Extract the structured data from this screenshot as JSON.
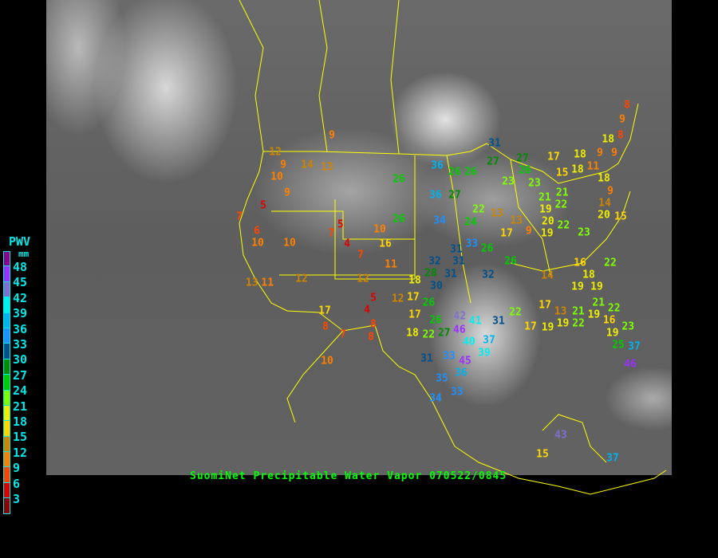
{
  "title": "SuomiNet Precipitable Water Vapor 070522/0845",
  "legend": {
    "title": "PWV",
    "unit": "mm",
    "ticks": [
      "48",
      "45",
      "42",
      "39",
      "36",
      "33",
      "30",
      "27",
      "24",
      "21",
      "18",
      "15",
      "12",
      "9",
      "6",
      "3"
    ],
    "colors": [
      "#8b008b",
      "#9b30ff",
      "#8070d0",
      "#00eeee",
      "#00b2ee",
      "#1e90ff",
      "#00508c",
      "#008b00",
      "#00cd00",
      "#7fff00",
      "#eeee00",
      "#ffd700",
      "#cd8500",
      "#ff8000",
      "#ff4500",
      "#dd0000",
      "#8b0000"
    ],
    "bin_edges": [
      48,
      45,
      42,
      39,
      36,
      33,
      30,
      27,
      24,
      21,
      18,
      15,
      12,
      9,
      6,
      3
    ]
  },
  "border_color": "#ffff00",
  "stations": [
    9,
    12,
    9,
    10,
    14,
    13,
    9,
    7,
    5,
    6,
    10,
    10,
    5,
    7,
    4,
    7,
    10,
    16,
    11,
    13,
    11,
    12,
    12,
    5,
    4,
    17,
    8,
    7,
    8,
    8,
    10,
    12,
    17,
    18,
    17,
    26,
    26,
    22,
    27,
    18,
    46,
    42,
    41,
    40,
    37,
    31,
    39,
    45,
    31,
    33,
    36,
    35,
    33,
    34,
    32,
    28,
    30,
    31,
    31,
    31,
    33,
    32,
    26,
    26,
    26,
    26,
    36,
    36,
    26,
    27,
    26,
    34,
    31,
    27,
    27,
    26,
    23,
    23,
    24,
    22,
    13,
    13,
    17,
    9,
    19,
    19,
    21,
    21,
    22,
    20,
    22,
    23,
    17,
    18,
    15,
    18,
    11,
    9,
    9,
    18,
    9,
    8,
    8,
    18,
    9,
    14,
    20,
    15,
    16,
    18,
    19,
    19,
    21,
    14,
    17,
    22,
    17,
    19,
    13,
    19,
    22,
    21,
    19,
    16,
    22,
    19,
    23,
    25,
    37,
    46,
    22,
    43,
    37,
    15
  ]
}
